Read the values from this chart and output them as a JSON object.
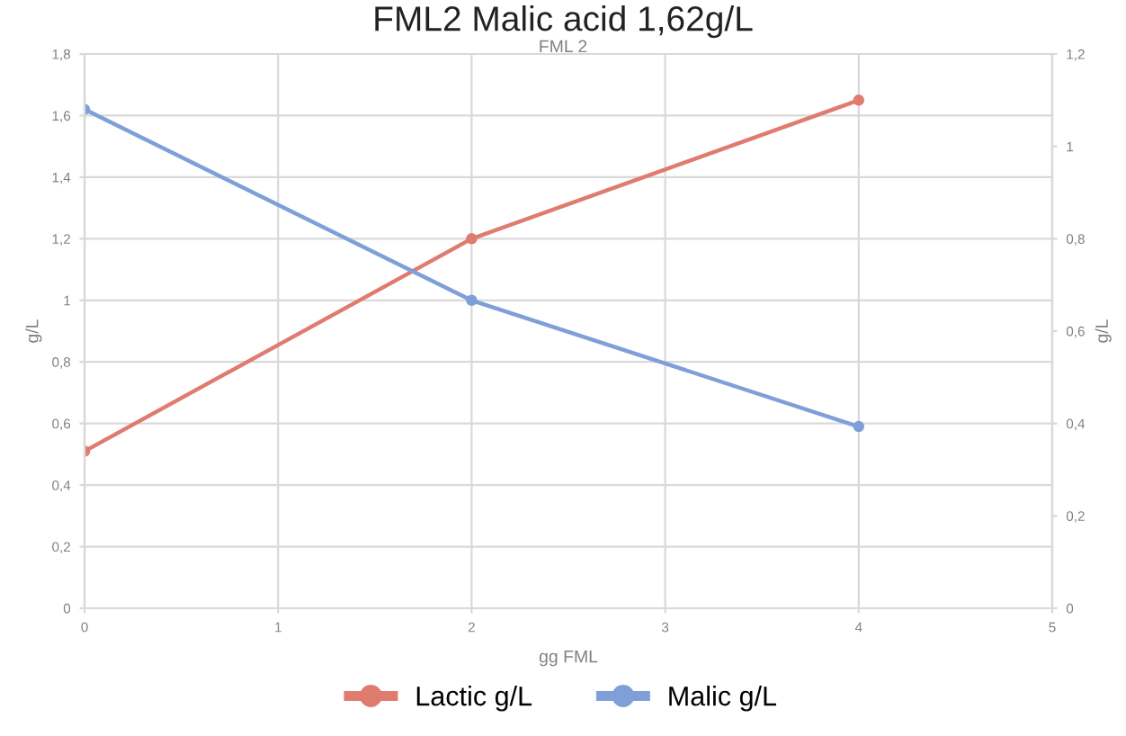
{
  "chart_data": {
    "type": "line",
    "title": "FML2 Malic acid 1,62g/L",
    "subtitle": "FML 2",
    "xlabel": "gg FML",
    "ylabel": "g/L",
    "y2label": "g/L",
    "x": [
      0,
      2,
      4
    ],
    "series": [
      {
        "name": "Lactic g/L",
        "color": "#e07b6f",
        "values": [
          0.51,
          1.2,
          1.65
        ]
      },
      {
        "name": "Malic g/L",
        "color": "#7f9fd8",
        "values": [
          1.62,
          1.0,
          0.59
        ]
      }
    ],
    "xlim": [
      0,
      5
    ],
    "xticks": [
      0,
      1,
      2,
      3,
      4,
      5
    ],
    "ylim": [
      0,
      1.8
    ],
    "yticks": [
      {
        "value": 0,
        "label": "0"
      },
      {
        "value": 0.2,
        "label": "0,2"
      },
      {
        "value": 0.4,
        "label": "0,4"
      },
      {
        "value": 0.6,
        "label": "0,6"
      },
      {
        "value": 0.8,
        "label": "0,8"
      },
      {
        "value": 1,
        "label": "1"
      },
      {
        "value": 1.2,
        "label": "1,2"
      },
      {
        "value": 1.4,
        "label": "1,4"
      },
      {
        "value": 1.6,
        "label": "1,6"
      },
      {
        "value": 1.8,
        "label": "1,8"
      }
    ],
    "y2lim": [
      0,
      1.2
    ],
    "y2ticks": [
      {
        "value": 0,
        "label": "0"
      },
      {
        "value": 0.2,
        "label": "0,2"
      },
      {
        "value": 0.4,
        "label": "0,4"
      },
      {
        "value": 0.6,
        "label": "0,6"
      },
      {
        "value": 0.8,
        "label": "0,8"
      },
      {
        "value": 1,
        "label": "1"
      },
      {
        "value": 1.2,
        "label": "1,2"
      }
    ],
    "grid": true,
    "legend": "bottom",
    "marker": "circle",
    "line_style": "solid"
  }
}
